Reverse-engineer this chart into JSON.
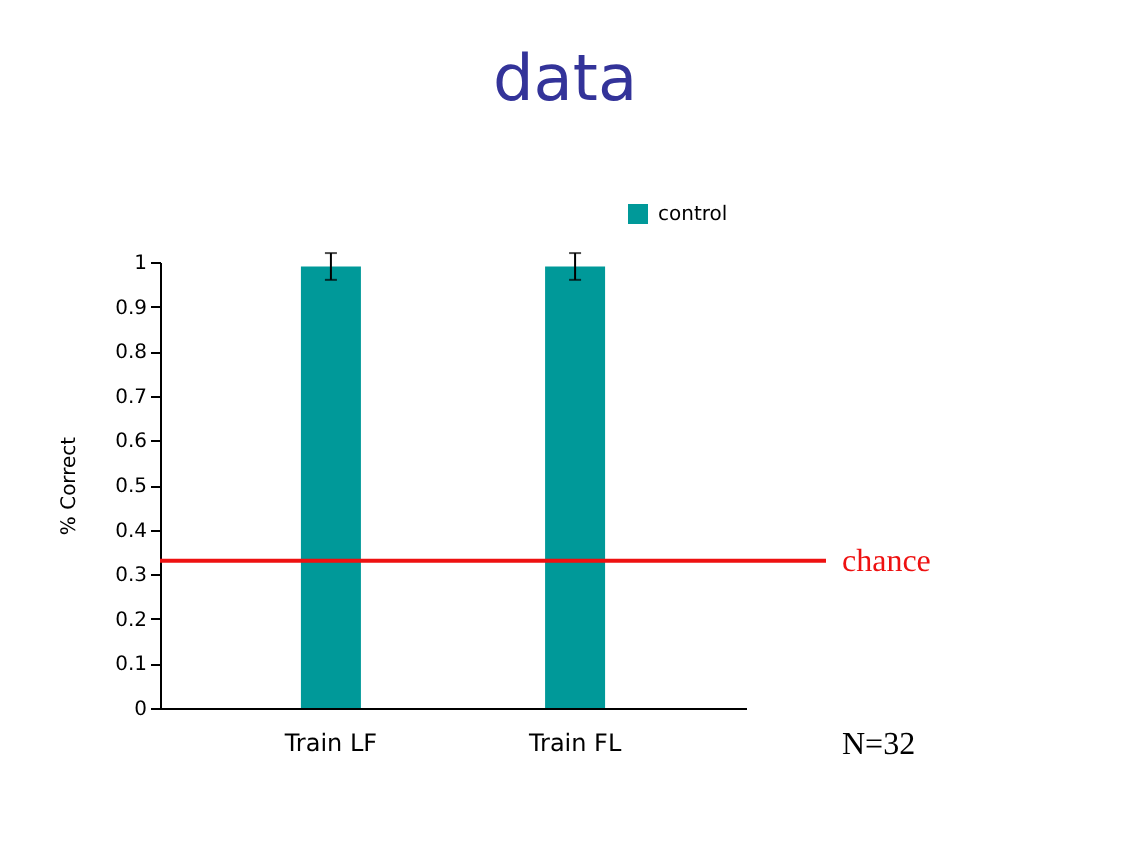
{
  "chart_data": {
    "type": "bar",
    "title": "data",
    "ylabel": "% Correct",
    "categories": [
      "Train LF",
      "Train FL"
    ],
    "series": [
      {
        "name": "control",
        "color": "#009999",
        "values": [
          0.99,
          0.99
        ],
        "errors": [
          0.03,
          0.03
        ]
      }
    ],
    "ylim": [
      0,
      1
    ],
    "yticks": [
      0,
      0.1,
      0.2,
      0.3,
      0.4,
      0.5,
      0.6,
      0.7,
      0.8,
      0.9,
      1
    ],
    "grid": false,
    "legend": "top right",
    "ref_lines": [
      {
        "axis": "y",
        "value": 0.33,
        "label": "chance",
        "color": "#ee1111"
      }
    ],
    "annotations": [
      "N=32"
    ]
  }
}
